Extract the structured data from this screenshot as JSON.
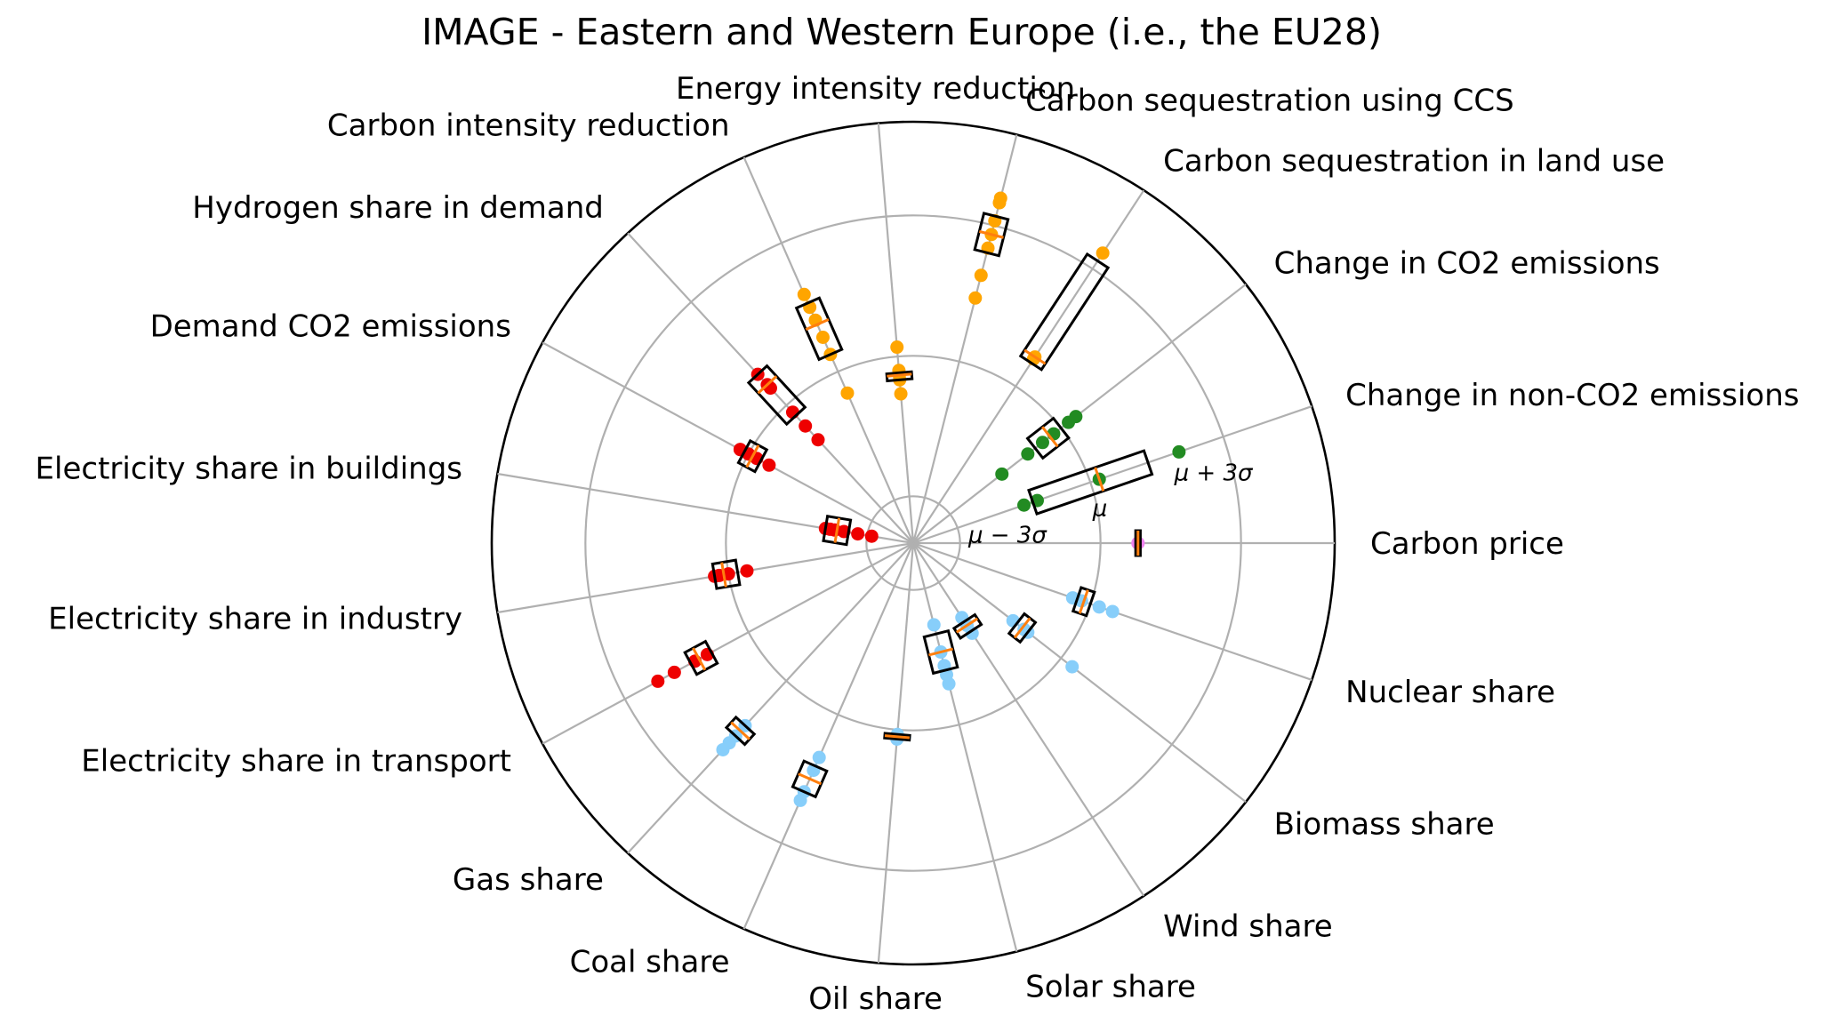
{
  "chart_data": {
    "type": "scatter",
    "polar": true,
    "title": "IMAGE - Eastern and Western Europe (i.e., the EU28)",
    "radial_scale_labels": {
      "lower": "μ − 3σ",
      "mean": "μ",
      "upper": "μ + 3σ"
    },
    "radial_range_sigma": [
      -4,
      5
    ],
    "grid": true,
    "colors": {
      "demand": "#ee0000",
      "supply_mix": "#87cefa",
      "emissions": "#228b22",
      "price": "#ee82ee",
      "transition": "#ffa500",
      "median": "#ff7f0e",
      "box": "#000000",
      "grid": "#b0b0b0"
    },
    "categories": [
      {
        "name": "Carbon price",
        "color": "#ee82ee",
        "points": [
          0.8,
          0.8
        ],
        "q1": 0.75,
        "q3": 0.85,
        "median": 0.8
      },
      {
        "name": "Change in non-CO2 emissions",
        "color": "#228b22",
        "points": [
          -1.5,
          -1.2,
          0.2,
          2.0
        ],
        "q1": -1.3,
        "q3": 1.3,
        "median": 0.2
      },
      {
        "name": "Change in CO2 emissions",
        "color": "#228b22",
        "points": [
          -1.6,
          -0.9,
          -0.5,
          -0.2,
          0.2,
          0.4
        ],
        "q1": -0.7,
        "q3": 0.0,
        "median": -0.3
      },
      {
        "name": "Carbon sequestration in land use",
        "color": "#ffa500",
        "points": [
          0.7,
          0.75,
          3.4
        ],
        "q1": 0.6,
        "q3": 3.2,
        "median": 0.75
      },
      {
        "name": "Carbon sequestration using CCS",
        "color": "#ffa500",
        "points": [
          1.4,
          1.9,
          2.5,
          2.8,
          3.1,
          3.5,
          3.6
        ],
        "q1": 2.4,
        "q3": 3.2,
        "median": 2.8
      },
      {
        "name": "Energy intensity reduction",
        "color": "#ffa500",
        "points": [
          -0.8,
          -0.5,
          -0.4,
          -0.3,
          0.2
        ],
        "q1": -0.5,
        "q3": -0.35,
        "median": -0.4
      },
      {
        "name": "Carbon intensity reduction",
        "color": "#ffa500",
        "points": [
          -0.5,
          0.4,
          0.8,
          1.2,
          1.5,
          1.8
        ],
        "q1": 0.4,
        "q3": 1.6,
        "median": 1.1
      },
      {
        "name": "Hydrogen share in demand",
        "color": "#ee0000",
        "points": [
          -1.0,
          -0.6,
          -0.2,
          0.5,
          0.6,
          0.9
        ],
        "q1": -0.3,
        "q3": 0.9,
        "median": 0.6
      },
      {
        "name": "Demand CO2 emissions",
        "color": "#ee0000",
        "points": [
          -0.5,
          -0.2,
          0.0,
          0.2,
          0.2
        ],
        "q1": -0.3,
        "q3": 0.1,
        "median": -0.1
      },
      {
        "name": "Electricity share in buildings",
        "color": "#ee0000",
        "points": [
          -2.1,
          -2.2,
          -2.3,
          -2.5,
          -2.8,
          -3.1
        ],
        "q1": -2.6,
        "q3": -2.1,
        "median": -2.35
      },
      {
        "name": "Electricity share in industry",
        "color": "#ee0000",
        "points": [
          -0.4,
          0.0,
          0.2,
          0.3
        ],
        "q1": -0.2,
        "q3": 0.3,
        "median": 0.1
      },
      {
        "name": "Electricity share in transport",
        "color": "#ee0000",
        "points": [
          1.0,
          1.3,
          1.8,
          2.2
        ],
        "q1": 0.9,
        "q3": 1.4,
        "median": 1.2
      },
      {
        "name": "Gas share",
        "color": "#87cefa",
        "points": [
          1.3,
          1.6,
          1.8,
          2.0
        ],
        "q1": 1.3,
        "q3": 1.6,
        "median": 1.45
      },
      {
        "name": "Coal share",
        "color": "#87cefa",
        "points": [
          1.0,
          1.3,
          1.8,
          2.0
        ],
        "q1": 1.2,
        "q3": 1.8,
        "median": 1.5
      },
      {
        "name": "Oil share",
        "color": "#87cefa",
        "points": [
          0.1,
          0.15,
          0.2
        ],
        "q1": 0.1,
        "q3": 0.2,
        "median": 0.15
      },
      {
        "name": "Solar share",
        "color": "#87cefa",
        "points": [
          -2.2,
          -1.6,
          -1.3,
          -1.1,
          -0.9
        ],
        "q1": -2.0,
        "q3": -1.2,
        "median": -1.6
      },
      {
        "name": "Wind share",
        "color": "#87cefa",
        "points": [
          -2.1,
          -1.9,
          -1.7
        ],
        "q1": -2.0,
        "q3": -1.75,
        "median": -1.9
      },
      {
        "name": "Biomass share",
        "color": "#87cefa",
        "points": [
          -1.3,
          -1.0,
          -0.9,
          0.3
        ],
        "q1": -1.2,
        "q3": -0.9,
        "median": -1.05
      },
      {
        "name": "Nuclear share",
        "color": "#87cefa",
        "points": [
          -0.4,
          -0.2,
          0.2,
          0.5
        ],
        "q1": -0.3,
        "q3": 0.0,
        "median": -0.15
      }
    ]
  }
}
